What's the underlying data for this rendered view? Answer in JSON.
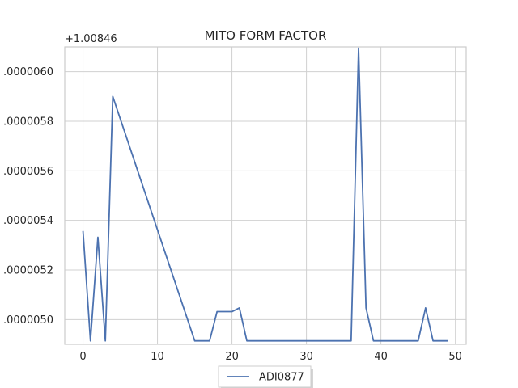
{
  "chart_data": {
    "type": "line",
    "title": "MITO FORM FACTOR",
    "xlabel": "",
    "ylabel": "",
    "y_offset_label": "+1.00846",
    "xlim": [
      -2.45,
      51.45
    ],
    "ylim": [
      4.9e-06,
      6.1e-06
    ],
    "x_ticks": [
      0,
      10,
      20,
      30,
      40,
      50
    ],
    "y_ticks": [
      5e-06,
      5.2e-06,
      5.4e-06,
      5.6e-06,
      5.8e-06,
      6e-06
    ],
    "y_tick_labels": [
      ".0000050",
      ".0000052",
      ".0000054",
      ".0000056",
      ".0000058",
      ".0000060"
    ],
    "grid": true,
    "legend_position": "bottom-center",
    "series": [
      {
        "name": "ADI0877",
        "color": "#4c72b0",
        "x": [
          0,
          1,
          2,
          3,
          4,
          15,
          17,
          18,
          20,
          21,
          22,
          36,
          37,
          38,
          39,
          45,
          46,
          47,
          49
        ],
        "y": [
          5.357e-06,
          4.914e-06,
          5.332e-06,
          4.914e-06,
          5.9e-06,
          4.914e-06,
          4.914e-06,
          5.032e-06,
          5.032e-06,
          5.047e-06,
          4.914e-06,
          4.914e-06,
          6.095e-06,
          5.047e-06,
          4.914e-06,
          4.914e-06,
          5.047e-06,
          4.914e-06,
          4.914e-06
        ]
      }
    ]
  }
}
